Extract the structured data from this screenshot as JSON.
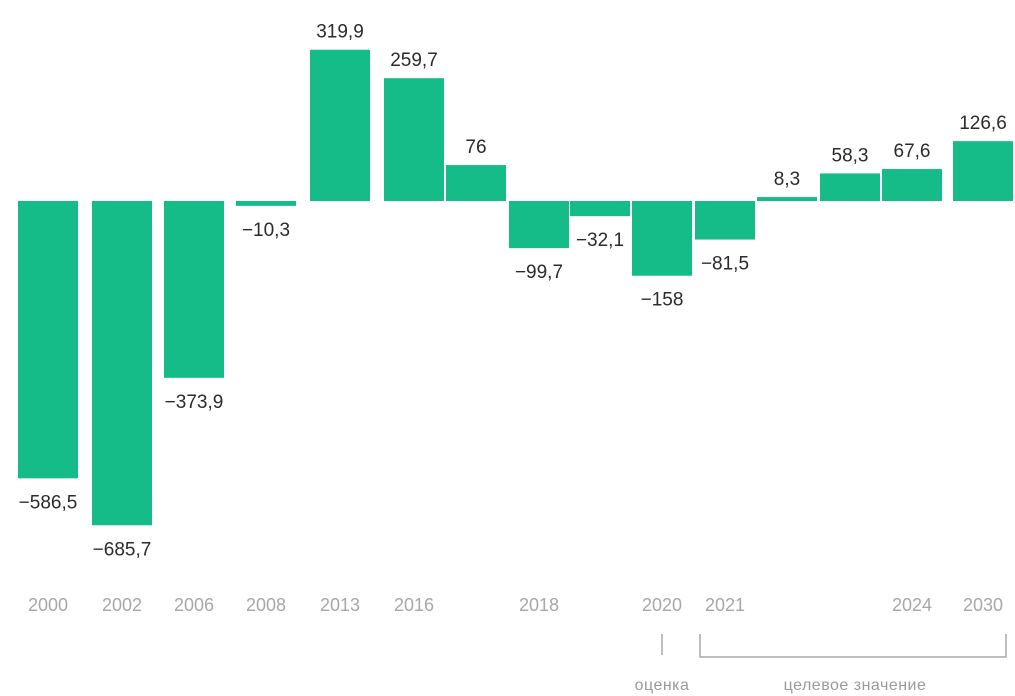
{
  "chart_data": {
    "type": "bar",
    "x": [
      0,
      1,
      2,
      3,
      4,
      5,
      6,
      7,
      8,
      9,
      10,
      11,
      12,
      13,
      14
    ],
    "tick_labels": [
      "2000",
      "2002",
      "2006",
      "2008",
      "2013",
      "2016",
      "",
      "2018",
      "",
      "2020",
      "2021",
      "",
      "",
      "2024",
      "2030"
    ],
    "values": [
      -586.5,
      -685.7,
      -373.9,
      -10.3,
      319.9,
      259.7,
      76,
      -99.7,
      -32.1,
      -158,
      -81.5,
      8.3,
      58.3,
      67.6,
      126.6
    ],
    "value_labels": [
      "−586,5",
      "−685,7",
      "−373,9",
      "−10,3",
      "319,9",
      "259,7",
      "76",
      "−99,7",
      "−32,1",
      "−158",
      "−81,5",
      "8,3",
      "58,3",
      "67,6",
      "126,6"
    ],
    "annotations": [
      {
        "text": "оценка",
        "applies_to": "2020"
      },
      {
        "text": "целевое значение",
        "applies_to": "2021–2030"
      }
    ],
    "bar_color": "#16bc88",
    "grid": false,
    "legend": "none"
  }
}
